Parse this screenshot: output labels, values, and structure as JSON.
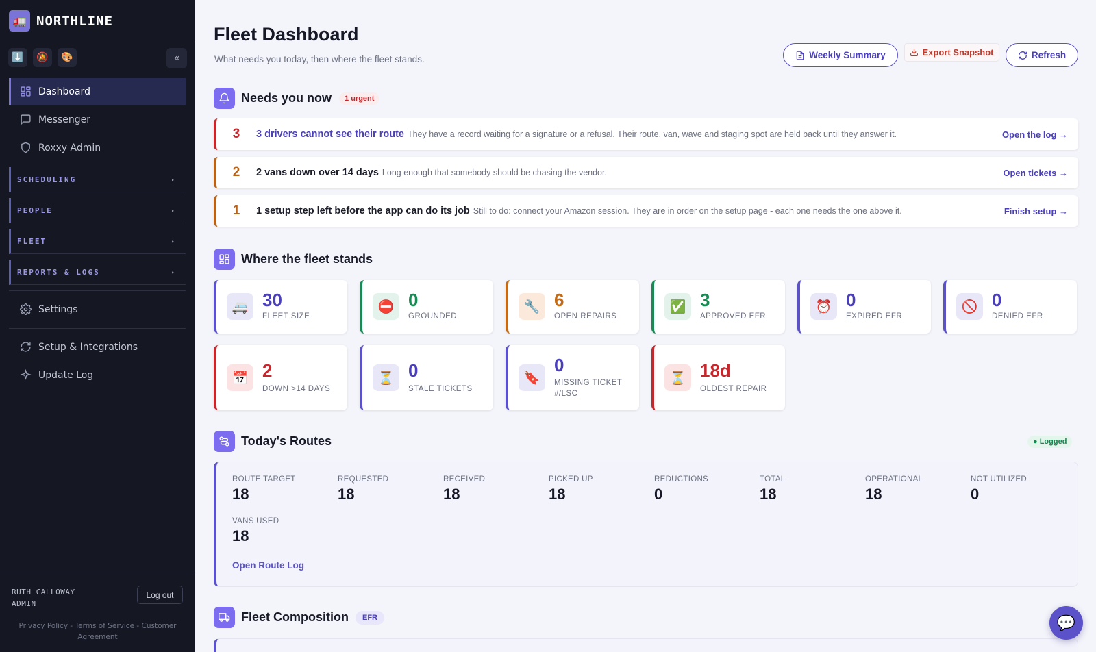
{
  "app": {
    "brand": "NORTHLINE",
    "brand_icon": "truck-icon"
  },
  "sidebar": {
    "quick_icons": [
      "download-icon",
      "bell-off-icon",
      "palette-icon"
    ],
    "quick_glyphs": [
      "⬇️",
      "🔕",
      "🎨"
    ],
    "collapse_label": "«",
    "items": [
      {
        "label": "Dashboard",
        "icon": "grid-icon",
        "active": true
      },
      {
        "label": "Messenger",
        "icon": "message-icon"
      },
      {
        "label": "Roxxy Admin",
        "icon": "shield-icon"
      }
    ],
    "groups": [
      {
        "label": "SCHEDULING",
        "arrow": "▸"
      },
      {
        "label": "PEOPLE",
        "arrow": "▸"
      },
      {
        "label": "FLEET",
        "arrow": "▸"
      },
      {
        "label": "REPORTS & LOGS",
        "arrow": "▸"
      }
    ],
    "bottom_items": [
      {
        "label": "Settings",
        "icon": "gear-icon"
      },
      {
        "label": "Setup & Integrations",
        "icon": "refresh-icon"
      },
      {
        "label": "Update Log",
        "icon": "sparkle-icon"
      }
    ],
    "user": {
      "name": "RUTH CALLOWAY",
      "role": "ADMIN",
      "logout_label": "Log out"
    },
    "legal": "Privacy Policy - Terms of Service - Customer Agreement"
  },
  "header": {
    "title": "Fleet Dashboard",
    "subtitle": "What needs you today, then where the fleet stands.",
    "weekly_summary_label": "Weekly Summary",
    "export_label": "Export Snapshot",
    "refresh_label": "Refresh"
  },
  "needs": {
    "title": "Needs you now",
    "badge": "1 urgent",
    "rows": [
      {
        "count": "3",
        "title": "3 drivers cannot see their route",
        "desc": "They have a record waiting for a signature or a refusal. Their route, van, wave and staging spot are held back until they answer it.",
        "link": "Open the log →",
        "tone": "red",
        "title_color": "#4a3fb8"
      },
      {
        "count": "2",
        "title": "2 vans down over 14 days",
        "desc": "Long enough that somebody should be chasing the vendor.",
        "link": "Open tickets →",
        "tone": "orange",
        "title_color": "#161827"
      },
      {
        "count": "1",
        "title": "1 setup step left before the app can do its job",
        "desc": "Still to do: connect your Amazon session. They are in order on the setup page - each one needs the one above it.",
        "link": "Finish setup →",
        "tone": "orange",
        "title_color": "#161827"
      }
    ]
  },
  "fleet": {
    "title": "Where the fleet stands",
    "cards": [
      {
        "value": "30",
        "label": "FLEET SIZE",
        "icon": "van-icon",
        "glyph": "🚐",
        "tone": "indigo"
      },
      {
        "value": "0",
        "label": "GROUNDED",
        "icon": "no-entry-icon",
        "glyph": "⛔",
        "tone": "green"
      },
      {
        "value": "6",
        "label": "OPEN REPAIRS",
        "icon": "wrench-icon",
        "glyph": "🔧",
        "tone": "orange"
      },
      {
        "value": "3",
        "label": "APPROVED EFR",
        "icon": "check-icon",
        "glyph": "✅",
        "tone": "green"
      },
      {
        "value": "0",
        "label": "EXPIRED EFR",
        "icon": "alarm-clock-icon",
        "glyph": "⏰",
        "tone": "indigo"
      },
      {
        "value": "0",
        "label": "DENIED EFR",
        "icon": "prohibited-icon",
        "glyph": "🚫",
        "tone": "indigo"
      },
      {
        "value": "2",
        "label": "DOWN >14 DAYS",
        "icon": "calendar-icon",
        "glyph": "📅",
        "tone": "red"
      },
      {
        "value": "0",
        "label": "STALE TICKETS",
        "icon": "hourglass-icon",
        "glyph": "⏳",
        "tone": "indigo"
      },
      {
        "value": "0",
        "label": "MISSING TICKET #/LSC",
        "icon": "bookmark-icon",
        "glyph": "🔖",
        "tone": "indigo"
      },
      {
        "value": "18d",
        "label": "OLDEST REPAIR",
        "icon": "hourglass-icon",
        "glyph": "⏳",
        "tone": "red"
      }
    ]
  },
  "routes": {
    "title": "Today's Routes",
    "status": "● Logged",
    "metrics": [
      {
        "label": "ROUTE TARGET",
        "value": "18"
      },
      {
        "label": "REQUESTED",
        "value": "18"
      },
      {
        "label": "RECEIVED",
        "value": "18"
      },
      {
        "label": "PICKED UP",
        "value": "18"
      },
      {
        "label": "REDUCTIONS",
        "value": "0"
      },
      {
        "label": "TOTAL",
        "value": "18"
      },
      {
        "label": "OPERATIONAL",
        "value": "18"
      },
      {
        "label": "NOT UTILIZED",
        "value": "0"
      },
      {
        "label": "VANS USED",
        "value": "18"
      }
    ],
    "link": "Open Route Log"
  },
  "composition": {
    "title": "Fleet Composition",
    "badge": "EFR"
  },
  "colors": {
    "accent": "#5b52c9",
    "red": "#c4282d",
    "orange": "#b8631a",
    "green": "#1a8a55"
  }
}
